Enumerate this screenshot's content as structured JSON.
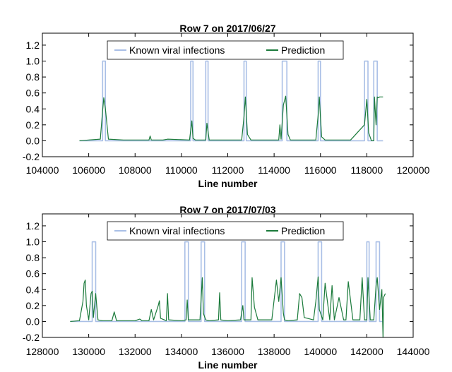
{
  "chart_data": [
    {
      "type": "line",
      "title": "Row 7 on 2017/06/27",
      "xlabel": "Line number",
      "ylabel": "",
      "xlim": [
        104000,
        120000
      ],
      "ylim": [
        -0.2,
        1.35
      ],
      "x_ticks": [
        104000,
        106000,
        108000,
        110000,
        112000,
        114000,
        116000,
        118000,
        120000
      ],
      "y_ticks": [
        -0.2,
        0.0,
        0.2,
        0.4,
        0.6,
        0.8,
        1.0,
        1.2
      ],
      "legend_position": "top-center",
      "series": [
        {
          "name": "Known viral infections",
          "color": "#a9bfe6",
          "x": [
            105600,
            106600,
            106600,
            106720,
            106720,
            110400,
            110400,
            110500,
            110500,
            111050,
            111050,
            111150,
            111150,
            112700,
            112700,
            112800,
            112800,
            114350,
            114350,
            114550,
            114550,
            115900,
            115900,
            116000,
            116000,
            117900,
            117900,
            118050,
            118050,
            118300,
            118300,
            118450,
            118450,
            118700
          ],
          "values": [
            0,
            0,
            1,
            1,
            0,
            0,
            1,
            1,
            0,
            0,
            1,
            1,
            0,
            0,
            1,
            1,
            0,
            0,
            1,
            1,
            0,
            0,
            1,
            1,
            0,
            0,
            1,
            1,
            0,
            0,
            1,
            1,
            0,
            0
          ]
        },
        {
          "name": "Prediction",
          "color": "#1a7a3a",
          "x": [
            105600,
            106000,
            106500,
            106600,
            106650,
            106720,
            106850,
            107500,
            108600,
            108650,
            108700,
            109200,
            109400,
            110350,
            110450,
            110500,
            110600,
            111050,
            111100,
            111200,
            111400,
            112600,
            112700,
            112760,
            112850,
            113000,
            114200,
            114250,
            114300,
            114400,
            114500,
            114600,
            114700,
            115800,
            115900,
            115950,
            116050,
            116200,
            117300,
            117900,
            118000,
            118080,
            118200,
            118300,
            118330,
            118380,
            118400,
            118450,
            118500,
            118550,
            118600,
            118700
          ],
          "values": [
            0,
            0.01,
            0.02,
            0.38,
            0.54,
            0.4,
            0.02,
            0.01,
            0.01,
            0.06,
            0.01,
            0.01,
            0.02,
            0.01,
            0.25,
            0.03,
            0.01,
            0.01,
            0.22,
            0.01,
            0.01,
            0.01,
            0.3,
            0.55,
            0.08,
            0.01,
            0.01,
            0.2,
            0.02,
            0.45,
            0.56,
            0.08,
            0.01,
            0.01,
            0.32,
            0.55,
            0.05,
            0.01,
            0.01,
            0.2,
            0.52,
            0.1,
            0.0,
            0.0,
            0.55,
            0.3,
            0.2,
            0.55,
            0.54,
            0.55,
            0.55,
            0.55
          ]
        }
      ]
    },
    {
      "type": "line",
      "title": "Row 7 on 2017/07/03",
      "xlabel": "Line number",
      "ylabel": "",
      "xlim": [
        128000,
        144000
      ],
      "ylim": [
        -0.2,
        1.35
      ],
      "x_ticks": [
        128000,
        130000,
        132000,
        134000,
        136000,
        138000,
        140000,
        142000,
        144000
      ],
      "y_ticks": [
        -0.2,
        0.0,
        0.2,
        0.4,
        0.6,
        0.8,
        1.0,
        1.2
      ],
      "legend_position": "top-center",
      "series": [
        {
          "name": "Known viral infections",
          "color": "#a9bfe6",
          "x": [
            129200,
            130150,
            130150,
            130300,
            130300,
            134150,
            134150,
            134300,
            134300,
            134850,
            134850,
            135000,
            135000,
            136600,
            136600,
            136750,
            136750,
            138300,
            138300,
            138450,
            138450,
            139900,
            139900,
            140050,
            140050,
            142000,
            142000,
            142100,
            142100,
            142400,
            142400,
            142550,
            142550,
            142700
          ],
          "values": [
            0,
            0,
            1,
            1,
            0,
            0,
            1,
            1,
            0,
            0,
            1,
            1,
            0,
            0,
            1,
            1,
            0,
            0,
            1,
            1,
            0,
            0,
            1,
            1,
            0,
            0,
            1,
            1,
            0,
            0,
            1,
            1,
            0,
            0
          ]
        },
        {
          "name": "Prediction",
          "color": "#1a7a3a",
          "x": [
            129200,
            129600,
            129750,
            129800,
            129850,
            129900,
            130000,
            130100,
            130150,
            130200,
            130300,
            130400,
            130600,
            131000,
            131100,
            131200,
            132000,
            132200,
            132300,
            132600,
            132700,
            132800,
            133000,
            133050,
            133100,
            133350,
            133400,
            133450,
            134000,
            134200,
            134250,
            134300,
            134800,
            134900,
            134950,
            135050,
            135200,
            135600,
            135650,
            135700,
            136000,
            136550,
            136650,
            136700,
            137000,
            137050,
            137150,
            137300,
            137900,
            138100,
            138200,
            138300,
            138400,
            138450,
            138600,
            139000,
            139100,
            139200,
            139300,
            139700,
            139800,
            139900,
            139950,
            140100,
            140200,
            140400,
            140500,
            140600,
            140800,
            141000,
            141100,
            141200,
            141400,
            141500,
            141700,
            141800,
            141900,
            142000,
            142050,
            142150,
            142300,
            142400,
            142450,
            142550,
            142650,
            142700,
            142720,
            142800
          ],
          "values": [
            0,
            0.01,
            0.25,
            0.48,
            0.52,
            0.2,
            0.02,
            0.35,
            0.38,
            0.05,
            0.35,
            0.02,
            0.01,
            0.01,
            0.12,
            0.01,
            0.01,
            0.03,
            0.01,
            0.01,
            0.15,
            0.02,
            0.2,
            0.26,
            0.04,
            0.01,
            0.35,
            0.02,
            0.01,
            0.02,
            0.27,
            0.02,
            0.02,
            0.55,
            0.1,
            0.02,
            0.01,
            0.02,
            0.36,
            0.02,
            0.01,
            0.02,
            0.2,
            0.02,
            0.02,
            0.55,
            0.18,
            0.02,
            0.02,
            0.52,
            0.25,
            0.55,
            0.1,
            0.02,
            0.01,
            0.02,
            0.35,
            0.3,
            0.05,
            0.02,
            0.25,
            0.56,
            0.15,
            0.02,
            0.48,
            0.02,
            0.45,
            0.02,
            0.3,
            0.02,
            0.02,
            0.5,
            0.02,
            0.02,
            0.02,
            0.55,
            0.02,
            0.02,
            0.55,
            0.02,
            0.02,
            0.45,
            0.55,
            0.15,
            0.4,
            -0.2,
            0.3,
            0.35
          ]
        }
      ]
    }
  ]
}
